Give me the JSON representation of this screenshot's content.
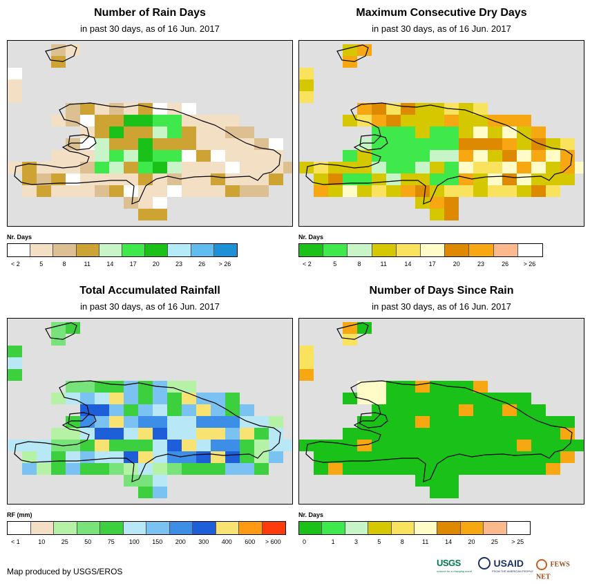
{
  "panels": {
    "rain_days": {
      "title": "Number of Rain Days",
      "subtitle": "in past 30 days, as of 16 Jun. 2017",
      "legend_title": "Nr. Days",
      "legend_colors": [
        "#ffffff",
        "#f3dfc3",
        "#dcc091",
        "#cda334",
        "#c7f5c7",
        "#3fe84b",
        "#19c119",
        "#b5eaf8",
        "#61bdf0",
        "#1d90d6"
      ],
      "legend_labels": [
        "< 2",
        "5",
        "8",
        "11",
        "14",
        "17",
        "20",
        "23",
        "26",
        "> 26"
      ]
    },
    "dry_days": {
      "title": "Maximum Consecutive Dry Days",
      "subtitle": "in past 30 days, as of 16 Jun. 2017",
      "legend_title": "Nr. Days",
      "legend_colors": [
        "#19c119",
        "#3fe84b",
        "#c7f5c7",
        "#d6c800",
        "#f9e35e",
        "#fffcc8",
        "#de8a00",
        "#f7a711",
        "#fbb98d",
        "#ffffff"
      ],
      "legend_labels": [
        "< 2",
        "5",
        "8",
        "11",
        "14",
        "17",
        "20",
        "23",
        "26",
        "> 26"
      ]
    },
    "rainfall": {
      "title": "Total Accumulated Rainfall",
      "subtitle": "in past 30 days, as of 16 Jun. 2017",
      "legend_title": "RF (mm)",
      "legend_colors": [
        "#ffffff",
        "#f3dfc3",
        "#b5f2a6",
        "#78e37a",
        "#3dd03e",
        "#b8e7f5",
        "#79c2f2",
        "#3c8ee6",
        "#1e5fd9",
        "#f8e271",
        "#ff9b12",
        "#ff3a0b"
      ],
      "legend_labels": [
        "< 1",
        "10",
        "25",
        "50",
        "75",
        "100",
        "150",
        "200",
        "300",
        "400",
        "600",
        "> 600"
      ]
    },
    "since_rain": {
      "title": "Number of Days Since Rain",
      "subtitle": "in past 30 days, as of 16 Jun. 2017",
      "legend_title": "Nr. Days",
      "legend_colors": [
        "#19c119",
        "#3fe84b",
        "#c7f5c7",
        "#d6c800",
        "#f9e35e",
        "#fffcc8",
        "#de8a00",
        "#f7a711",
        "#fbb98d",
        "#ffffff"
      ],
      "legend_labels": [
        "0",
        "1",
        "3",
        "5",
        "8",
        "11",
        "14",
        "20",
        "25",
        "> 25"
      ]
    }
  },
  "footer": "Map produced by USGS/EROS",
  "logos": {
    "usgs": "USGS",
    "usgs_tagline": "science for a changing world",
    "usaid": "USAID",
    "usaid_tagline": "FROM THE AMERICAN PEOPLE",
    "fews": "FEWS NET"
  }
}
